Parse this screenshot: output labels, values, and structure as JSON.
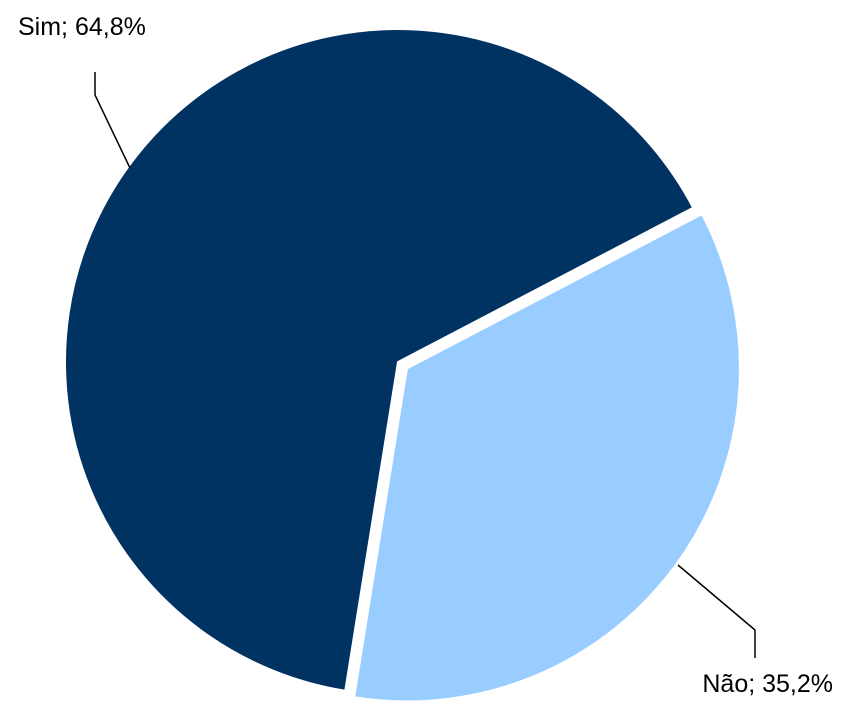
{
  "chart_data": {
    "type": "pie",
    "values": [
      64.8,
      35.2
    ],
    "value_labels": [
      "Sim; 64,8%",
      "Não; 35,2%"
    ],
    "colors": [
      "#003262",
      "#99ccff"
    ]
  }
}
